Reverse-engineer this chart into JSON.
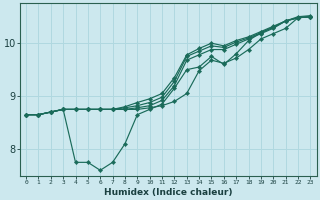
{
  "xlabel": "Humidex (Indice chaleur)",
  "bg_color": "#cce8ee",
  "grid_color": "#b0d8e0",
  "line_color": "#1a6b5a",
  "xlim": [
    -0.5,
    23.5
  ],
  "ylim": [
    7.5,
    10.75
  ],
  "yticks": [
    8,
    9,
    10
  ],
  "xtick_labels": [
    "0",
    "1",
    "2",
    "3",
    "4",
    "5",
    "6",
    "7",
    "8",
    "9",
    "10",
    "11",
    "12",
    "13",
    "14",
    "15",
    "16",
    "17",
    "18",
    "19",
    "20",
    "21",
    "22",
    "23"
  ],
  "series": [
    [
      8.65,
      8.65,
      8.7,
      8.75,
      7.75,
      7.75,
      7.6,
      7.75,
      8.1,
      8.65,
      8.75,
      8.85,
      9.15,
      9.5,
      9.55,
      9.75,
      9.6,
      9.8,
      10.05,
      10.2,
      10.3,
      10.42,
      10.48,
      10.5
    ],
    [
      8.65,
      8.65,
      8.7,
      8.75,
      8.75,
      8.75,
      8.75,
      8.75,
      8.75,
      8.75,
      8.78,
      8.82,
      8.9,
      9.05,
      9.48,
      9.68,
      9.62,
      9.72,
      9.88,
      10.08,
      10.18,
      10.28,
      10.48,
      10.5
    ],
    [
      8.65,
      8.65,
      8.7,
      8.75,
      8.75,
      8.75,
      8.75,
      8.75,
      8.75,
      8.78,
      8.82,
      8.92,
      9.2,
      9.68,
      9.78,
      9.88,
      9.88,
      9.98,
      10.08,
      10.18,
      10.28,
      10.42,
      10.48,
      10.5
    ],
    [
      8.65,
      8.65,
      8.7,
      8.75,
      8.75,
      8.75,
      8.75,
      8.75,
      8.78,
      8.82,
      8.88,
      8.98,
      9.28,
      9.75,
      9.85,
      9.95,
      9.92,
      10.02,
      10.1,
      10.2,
      10.3,
      10.42,
      10.48,
      10.5
    ],
    [
      8.65,
      8.65,
      8.7,
      8.75,
      8.75,
      8.75,
      8.75,
      8.75,
      8.8,
      8.88,
      8.95,
      9.05,
      9.35,
      9.78,
      9.9,
      10.0,
      9.95,
      10.05,
      10.12,
      10.22,
      10.32,
      10.42,
      10.5,
      10.52
    ]
  ]
}
